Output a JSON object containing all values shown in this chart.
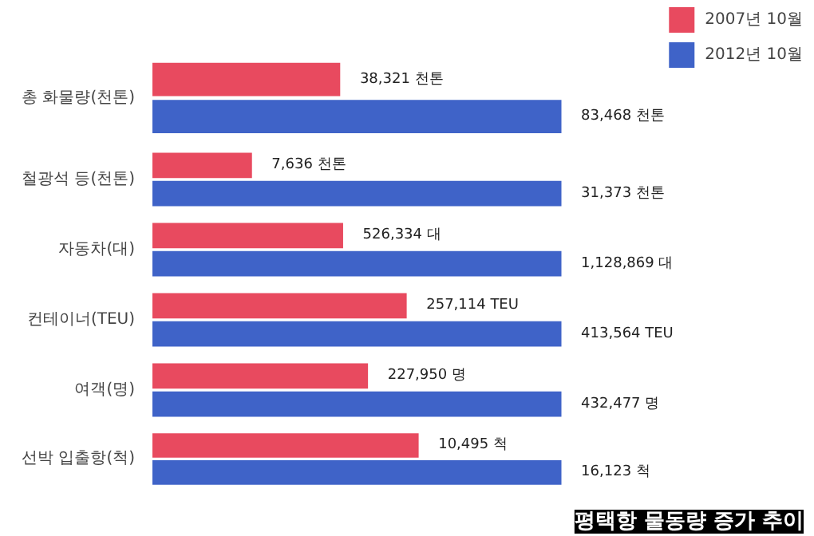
{
  "chart_data": [
    {
      "type": "bar",
      "orientation": "horizontal",
      "categories": [
        "총 화물량(천톤)"
      ],
      "tick_labels": "y",
      "legend": "top right",
      "series": [
        {
          "name": "2007년 10월",
          "color": "#e84a5f",
          "values": [
            38321
          ],
          "value_labels": [
            "38,321 천톤"
          ]
        },
        {
          "name": "2012년 10월",
          "color": "#3f63c8",
          "values": [
            83468
          ],
          "value_labels": [
            "83,468 천톤"
          ]
        }
      ]
    },
    {
      "type": "bar",
      "orientation": "horizontal",
      "categories": [
        "철광석 등(천톤)"
      ],
      "tick_labels": "y",
      "series": [
        {
          "color": "#e84a5f",
          "values": [
            7636
          ],
          "value_labels": [
            "7,636 천톤"
          ]
        },
        {
          "color": "#3f63c8",
          "values": [
            31373
          ],
          "value_labels": [
            "31,373 천톤"
          ]
        }
      ]
    },
    {
      "type": "bar",
      "orientation": "horizontal",
      "categories": [
        "자동차(대)"
      ],
      "tick_labels": "y",
      "series": [
        {
          "color": "#e84a5f",
          "values": [
            526334
          ],
          "value_labels": [
            "526,334 대"
          ]
        },
        {
          "color": "#3f63c8",
          "values": [
            1128869
          ],
          "value_labels": [
            "1,128,869 대"
          ]
        }
      ]
    },
    {
      "type": "bar",
      "orientation": "horizontal",
      "categories": [
        "컨테이너(TEU)"
      ],
      "tick_labels": "y",
      "series": [
        {
          "color": "#e84a5f",
          "values": [
            257114
          ],
          "value_labels": [
            "257,114 TEU"
          ]
        },
        {
          "color": "#3f63c8",
          "values": [
            413564
          ],
          "value_labels": [
            "413,564 TEU"
          ]
        }
      ]
    },
    {
      "type": "bar",
      "orientation": "horizontal",
      "categories": [
        "여객(명)"
      ],
      "tick_labels": "y",
      "series": [
        {
          "color": "#e84a5f",
          "values": [
            227950
          ],
          "value_labels": [
            "227,950 명"
          ]
        },
        {
          "color": "#3f63c8",
          "values": [
            432477
          ],
          "value_labels": [
            "432,477 명"
          ]
        }
      ]
    },
    {
      "type": "bar",
      "orientation": "horizontal",
      "categories": [
        "선박 입출항(척)"
      ],
      "tick_labels": "y",
      "annotations": [
        "평택항 물동량 증가 추이"
      ],
      "series": [
        {
          "color": "#e84a5f",
          "values": [
            10495
          ],
          "value_labels": [
            "10,495 척"
          ]
        },
        {
          "color": "#3f63c8",
          "values": [
            16123
          ],
          "value_labels": [
            "16,123 척"
          ]
        }
      ]
    }
  ]
}
